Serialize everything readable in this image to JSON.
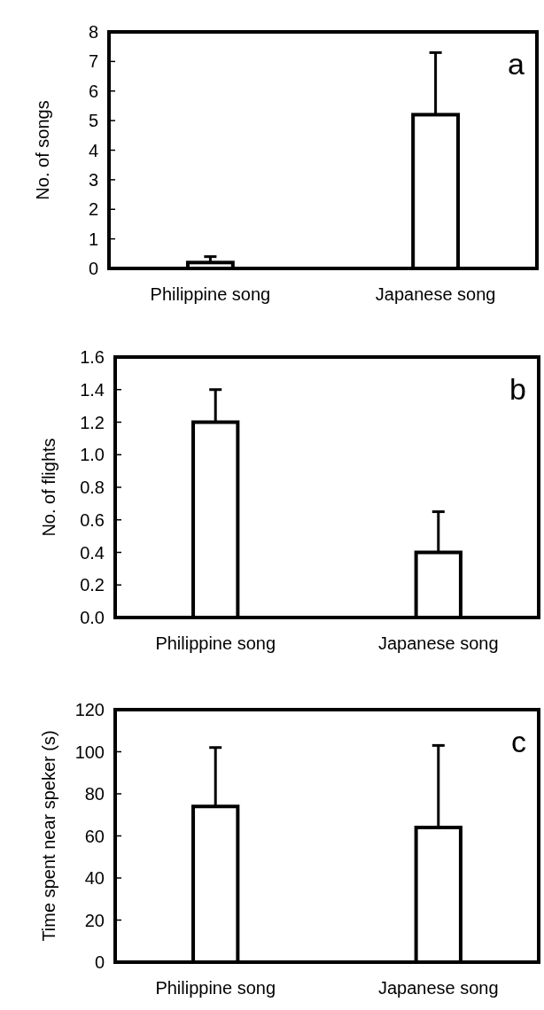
{
  "chart_data": [
    {
      "type": "bar",
      "ylabel": "No. of songs",
      "categories": [
        "Philippine song",
        "Japanese song"
      ],
      "values": [
        0.2,
        5.2
      ],
      "errors": [
        [
          0.2,
          0.4
        ],
        [
          5.2,
          7.3
        ]
      ],
      "color": "#ffffff",
      "ylim": [
        0,
        8
      ],
      "yticks": [
        0,
        1,
        2,
        3,
        4,
        5,
        6,
        7,
        8
      ],
      "annotations": [
        "a"
      ]
    },
    {
      "type": "bar",
      "ylabel": "No. of flights",
      "categories": [
        "Philippine song",
        "Japanese song"
      ],
      "values": [
        1.2,
        0.4
      ],
      "errors": [
        [
          1.2,
          1.4
        ],
        [
          0.4,
          0.65
        ]
      ],
      "color": "#ffffff",
      "ylim": [
        0,
        1.6
      ],
      "yticks": [
        {
          "value": 0,
          "label": "0.0"
        },
        {
          "value": 0.2,
          "label": "0.2"
        },
        {
          "value": 0.4,
          "label": "0.4"
        },
        {
          "value": 0.6,
          "label": "0.6"
        },
        {
          "value": 0.8,
          "label": "0.8"
        },
        {
          "value": 1,
          "label": "1.0"
        },
        {
          "value": 1.2,
          "label": "1.2"
        },
        {
          "value": 1.4,
          "label": "1.4"
        },
        {
          "value": 1.6,
          "label": "1.6"
        }
      ],
      "annotations": [
        "b"
      ]
    },
    {
      "type": "bar",
      "ylabel": "Time spent near speker (s)",
      "categories": [
        "Philippine song",
        "Japanese song"
      ],
      "values": [
        74,
        64
      ],
      "errors": [
        [
          74,
          102
        ],
        [
          64,
          103
        ]
      ],
      "color": "#ffffff",
      "ylim": [
        0,
        120
      ],
      "yticks": [
        0,
        20,
        40,
        60,
        80,
        100,
        120
      ],
      "annotations": [
        "c"
      ]
    }
  ]
}
